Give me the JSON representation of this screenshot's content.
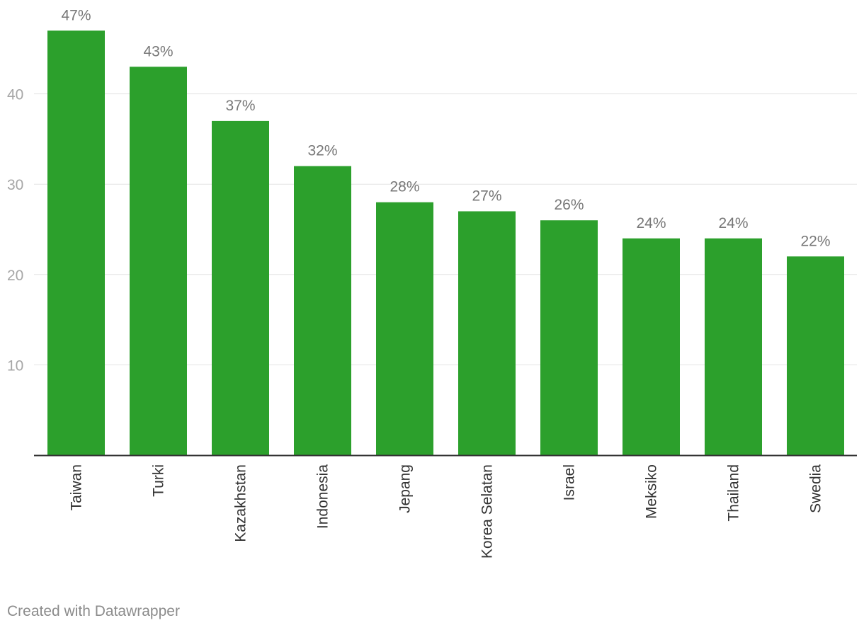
{
  "chart_data": {
    "type": "bar",
    "categories": [
      "Taiwan",
      "Turki",
      "Kazakhstan",
      "Indonesia",
      "Jepang",
      "Korea Selatan",
      "Israel",
      "Meksiko",
      "Thailand",
      "Swedia"
    ],
    "values": [
      47,
      43,
      37,
      32,
      28,
      27,
      26,
      24,
      24,
      22
    ],
    "value_labels": [
      "47%",
      "43%",
      "37%",
      "32%",
      "28%",
      "27%",
      "26%",
      "24%",
      "24%",
      "22%"
    ],
    "yticks": [
      10,
      20,
      30,
      40
    ],
    "ylim": [
      0,
      50
    ],
    "grid": true,
    "title": "",
    "xlabel": "",
    "ylabel": "",
    "bar_color": "#2ca02c",
    "label_color": "#777777",
    "tick_color": "#a6a6a6",
    "category_color": "#333333"
  },
  "footer": {
    "credit": "Created with Datawrapper"
  }
}
